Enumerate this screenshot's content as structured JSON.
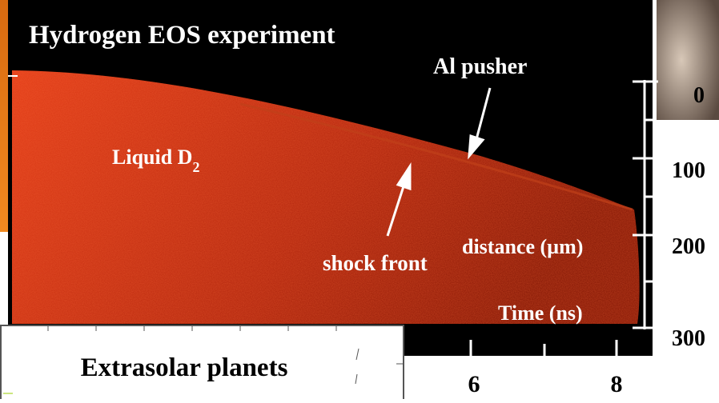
{
  "streak_image": {
    "title": "Hydrogen EOS experiment",
    "annotations": {
      "pusher": "Al pusher",
      "liquid": {
        "label": "Liquid D",
        "subscript": "2"
      },
      "shock": "shock front"
    },
    "y_axis": {
      "label": "distance (µm)",
      "ticks": [
        "0",
        "100",
        "200",
        "300"
      ]
    },
    "x_axis": {
      "label": "Time (ns)",
      "ticks": [
        "6",
        "8"
      ]
    }
  },
  "inset": {
    "title": "Extrasolar planets"
  }
}
